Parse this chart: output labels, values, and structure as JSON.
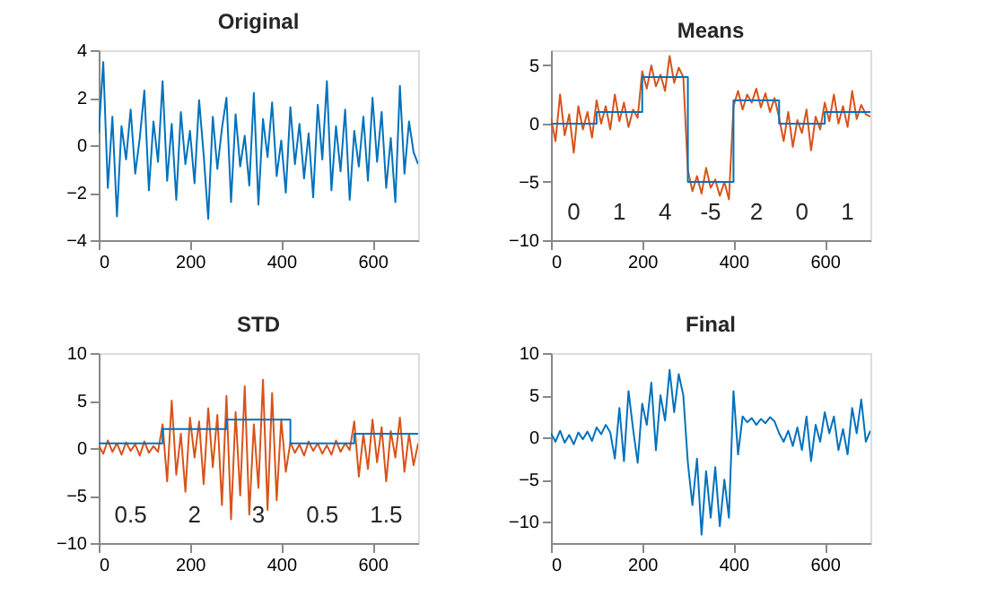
{
  "chart_data": [
    {
      "type": "line",
      "title": "Original",
      "xlim": [
        0,
        700
      ],
      "xticks": [
        0,
        200,
        400,
        600
      ],
      "ylim": [
        -4,
        4
      ],
      "yticks": [
        -4,
        -2,
        0,
        2,
        4
      ],
      "grid": false,
      "legend": false,
      "series": [
        {
          "color": "#0072bd",
          "x": [
            0,
            10,
            20,
            30,
            40,
            50,
            60,
            70,
            80,
            90,
            100,
            110,
            120,
            130,
            140,
            150,
            160,
            170,
            180,
            190,
            200,
            210,
            220,
            230,
            240,
            250,
            260,
            270,
            280,
            290,
            300,
            310,
            320,
            330,
            340,
            350,
            360,
            370,
            380,
            390,
            400,
            410,
            420,
            430,
            440,
            450,
            460,
            470,
            480,
            490,
            500,
            510,
            520,
            530,
            540,
            550,
            560,
            570,
            580,
            590,
            600,
            610,
            620,
            630,
            640,
            650,
            660,
            670,
            680,
            690,
            700
          ],
          "values": [
            0.5,
            3.5,
            -1.8,
            1.2,
            -3.0,
            0.8,
            -0.6,
            1.5,
            -1.2,
            0.3,
            2.3,
            -1.9,
            1.0,
            -0.7,
            2.7,
            -1.5,
            0.9,
            -2.3,
            1.4,
            -0.8,
            0.6,
            -1.6,
            1.9,
            -0.4,
            -3.1,
            1.2,
            -1.0,
            0.7,
            2.0,
            -2.4,
            1.3,
            -0.9,
            0.4,
            -1.7,
            2.2,
            -2.5,
            1.1,
            -0.5,
            1.8,
            -1.3,
            0.2,
            -2.0,
            1.6,
            -0.8,
            0.9,
            -1.4,
            0.5,
            -2.2,
            1.7,
            -0.6,
            2.7,
            -1.9,
            0.8,
            -1.1,
            1.5,
            -2.3,
            0.6,
            -0.9,
            1.2,
            -1.5,
            2.0,
            -0.7,
            1.4,
            -1.8,
            0.3,
            -2.4,
            2.5,
            -1.2,
            1.0,
            -0.3,
            -0.8
          ]
        }
      ]
    },
    {
      "type": "line",
      "title": "Means",
      "xlim": [
        0,
        700
      ],
      "xticks": [
        0,
        200,
        400,
        600
      ],
      "ylim": [
        -10,
        6.3
      ],
      "yticks": [
        -10,
        -5,
        0,
        5
      ],
      "grid": false,
      "legend": false,
      "annotations": [
        "0",
        "1",
        "4",
        "-5",
        "2",
        "0",
        "1"
      ],
      "series": [
        {
          "color": "#d95319",
          "x": [
            0,
            10,
            20,
            30,
            40,
            50,
            60,
            70,
            80,
            90,
            100,
            110,
            120,
            130,
            140,
            150,
            160,
            170,
            180,
            190,
            200,
            210,
            220,
            230,
            240,
            250,
            260,
            270,
            280,
            290,
            300,
            310,
            320,
            330,
            340,
            350,
            360,
            370,
            380,
            390,
            400,
            410,
            420,
            430,
            440,
            450,
            460,
            470,
            480,
            490,
            500,
            510,
            520,
            530,
            540,
            550,
            560,
            570,
            580,
            590,
            600,
            610,
            620,
            630,
            640,
            650,
            660,
            670,
            680,
            690,
            700
          ],
          "values": [
            0.5,
            -1.5,
            2.5,
            -1.0,
            0.8,
            -2.5,
            1.5,
            -0.5,
            1.0,
            -1.2,
            2.0,
            0.0,
            1.5,
            -0.5,
            2.5,
            0.2,
            1.8,
            -0.3,
            1.2,
            0.5,
            4.5,
            3.0,
            5.0,
            3.2,
            4.2,
            2.8,
            5.8,
            3.5,
            4.8,
            4.0,
            -4.0,
            -5.8,
            -4.5,
            -6.0,
            -3.8,
            -5.5,
            -4.8,
            -6.2,
            -5.0,
            -6.5,
            1.5,
            2.8,
            1.2,
            2.5,
            1.8,
            3.0,
            1.4,
            2.6,
            1.0,
            2.2,
            0.5,
            -1.5,
            1.0,
            -2.0,
            0.3,
            -0.8,
            1.2,
            -2.3,
            0.6,
            -0.5,
            1.8,
            0.2,
            2.5,
            0.0,
            1.5,
            -0.3,
            2.8,
            0.4,
            1.6,
            0.8,
            0.6
          ]
        },
        {
          "type": "step",
          "color": "#0072bd",
          "x": [
            0,
            100,
            200,
            300,
            400,
            500,
            600,
            700
          ],
          "values": [
            0,
            1,
            4,
            -5,
            2,
            0,
            1,
            1
          ]
        }
      ]
    },
    {
      "type": "line",
      "title": "STD",
      "xlim": [
        0,
        700
      ],
      "xticks": [
        0,
        200,
        400,
        600
      ],
      "ylim": [
        -10,
        10
      ],
      "yticks": [
        -10,
        -5,
        0,
        5,
        10
      ],
      "grid": false,
      "legend": false,
      "annotations": [
        "0.5",
        "2",
        "3",
        "0.5",
        "1.5"
      ],
      "series": [
        {
          "color": "#d95319",
          "x": [
            0,
            10,
            20,
            30,
            40,
            50,
            60,
            70,
            80,
            90,
            100,
            110,
            120,
            130,
            140,
            150,
            160,
            170,
            180,
            190,
            200,
            210,
            220,
            230,
            240,
            250,
            260,
            270,
            280,
            290,
            300,
            310,
            320,
            330,
            340,
            350,
            360,
            370,
            380,
            390,
            400,
            410,
            420,
            430,
            440,
            450,
            460,
            470,
            480,
            490,
            500,
            510,
            520,
            530,
            540,
            550,
            560,
            570,
            580,
            590,
            600,
            610,
            620,
            630,
            640,
            650,
            660,
            670,
            680,
            690,
            700
          ],
          "values": [
            0.3,
            -0.6,
            0.8,
            -0.4,
            0.5,
            -0.7,
            0.6,
            -0.3,
            0.4,
            -0.8,
            0.7,
            -0.5,
            0.2,
            -0.4,
            2.5,
            -3.5,
            5.0,
            -2.8,
            1.5,
            -4.6,
            3.2,
            -1.0,
            2.8,
            -3.8,
            4.2,
            -2.0,
            3.5,
            -6.0,
            5.5,
            -7.5,
            3.8,
            -5.0,
            6.5,
            -7.0,
            2.5,
            -4.2,
            7.2,
            -6.5,
            5.8,
            -5.5,
            3.0,
            -2.5,
            0.6,
            -0.5,
            0.4,
            -0.8,
            0.7,
            -0.3,
            0.5,
            -0.6,
            0.3,
            -0.7,
            0.8,
            -0.4,
            0.5,
            -0.2,
            2.8,
            -3.0,
            1.5,
            -2.2,
            3.0,
            -1.5,
            2.2,
            -3.5,
            1.8,
            -1.0,
            3.2,
            -2.5,
            1.5,
            -1.8,
            0.5
          ]
        },
        {
          "type": "step",
          "color": "#0072bd",
          "x": [
            0,
            140,
            280,
            420,
            560,
            700
          ],
          "values": [
            0.5,
            2,
            3,
            0.5,
            1.5,
            1.5
          ]
        }
      ]
    },
    {
      "type": "line",
      "title": "Final",
      "xlim": [
        0,
        700
      ],
      "xticks": [
        0,
        200,
        400,
        600
      ],
      "ylim": [
        -12.5,
        10
      ],
      "yticks": [
        -10,
        -5,
        0,
        5,
        10
      ],
      "grid": false,
      "legend": false,
      "series": [
        {
          "color": "#0072bd",
          "x": [
            0,
            10,
            20,
            30,
            40,
            50,
            60,
            70,
            80,
            90,
            100,
            110,
            120,
            130,
            140,
            150,
            160,
            170,
            180,
            190,
            200,
            210,
            220,
            230,
            240,
            250,
            260,
            270,
            280,
            290,
            300,
            310,
            320,
            330,
            340,
            350,
            360,
            370,
            380,
            390,
            400,
            410,
            420,
            430,
            440,
            450,
            460,
            470,
            480,
            490,
            500,
            510,
            520,
            530,
            540,
            550,
            560,
            570,
            580,
            590,
            600,
            610,
            620,
            630,
            640,
            650,
            660,
            670,
            680,
            690,
            700
          ],
          "values": [
            0.5,
            -0.5,
            0.8,
            -0.6,
            0.3,
            -0.8,
            0.6,
            -0.2,
            0.7,
            -0.4,
            1.2,
            0.4,
            1.5,
            0.6,
            -2.5,
            3.5,
            -2.8,
            5.5,
            1.0,
            -3.0,
            4.0,
            1.5,
            6.5,
            -1.5,
            5.0,
            2.0,
            8.0,
            3.0,
            7.5,
            5.0,
            -3.0,
            -8.0,
            -2.5,
            -11.5,
            -4.0,
            -9.5,
            -3.5,
            -10.5,
            -5.0,
            -9.5,
            5.5,
            -2.0,
            2.5,
            1.8,
            2.3,
            1.5,
            2.2,
            1.7,
            2.4,
            1.9,
            0.5,
            -0.5,
            0.8,
            -1.0,
            1.2,
            -1.5,
            2.5,
            -2.8,
            1.5,
            -0.5,
            3.0,
            0.5,
            2.5,
            -1.5,
            1.0,
            -2.0,
            3.5,
            0.5,
            4.5,
            -0.5,
            0.8
          ]
        }
      ]
    }
  ]
}
